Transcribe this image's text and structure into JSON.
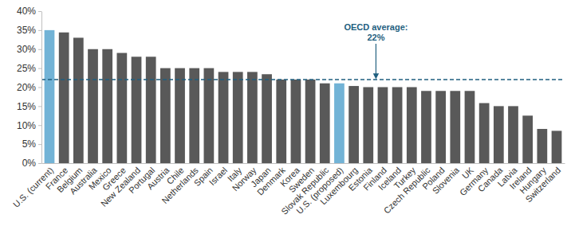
{
  "chart_data": {
    "type": "bar",
    "categories": [
      "U.S. (current)",
      "France",
      "Belgium",
      "Australia",
      "Mexico",
      "Greece",
      "New Zealand",
      "Portugal",
      "Austria",
      "Chile",
      "Netherlands",
      "Spain",
      "Israel",
      "Italy",
      "Norway",
      "Japan",
      "Denmark",
      "Korea",
      "Sweden",
      "Slovak Republic",
      "U.S. (proposed)",
      "Luxembourg",
      "Estonia",
      "Finland",
      "Iceland",
      "Turkey",
      "Czech Republic",
      "Poland",
      "Slovenia",
      "UK",
      "Germany",
      "Canada",
      "Latvia",
      "Ireland",
      "Hungary",
      "Switzerland"
    ],
    "values": [
      35,
      34.4,
      33,
      30,
      30,
      29,
      28,
      28,
      25,
      25,
      25,
      25,
      24,
      24,
      24,
      23.4,
      22,
      22,
      22,
      21,
      21,
      20.3,
      20,
      20,
      20,
      20,
      19,
      19,
      19,
      19,
      15.8,
      15,
      15,
      12.5,
      9,
      8.5
    ],
    "colors": [
      "#72b3d6",
      "#595959",
      "#595959",
      "#595959",
      "#595959",
      "#595959",
      "#595959",
      "#595959",
      "#595959",
      "#595959",
      "#595959",
      "#595959",
      "#595959",
      "#595959",
      "#595959",
      "#595959",
      "#595959",
      "#595959",
      "#595959",
      "#595959",
      "#72b3d6",
      "#595959",
      "#595959",
      "#595959",
      "#595959",
      "#595959",
      "#595959",
      "#595959",
      "#595959",
      "#595959",
      "#595959",
      "#595959",
      "#595959",
      "#595959",
      "#595959",
      "#595959"
    ],
    "ylim": [
      0,
      40
    ],
    "yticks": [
      {
        "value": 0,
        "label": "0%"
      },
      {
        "value": 5,
        "label": "5%"
      },
      {
        "value": 10,
        "label": "10%"
      },
      {
        "value": 15,
        "label": "15%"
      },
      {
        "value": 20,
        "label": "20%"
      },
      {
        "value": 25,
        "label": "25%"
      },
      {
        "value": 30,
        "label": "30%"
      },
      {
        "value": 35,
        "label": "35%"
      },
      {
        "value": 40,
        "label": "40%"
      }
    ],
    "grid": false,
    "reference_line": {
      "value": 22,
      "label_lines": [
        "OECD average:",
        "22%"
      ]
    }
  }
}
